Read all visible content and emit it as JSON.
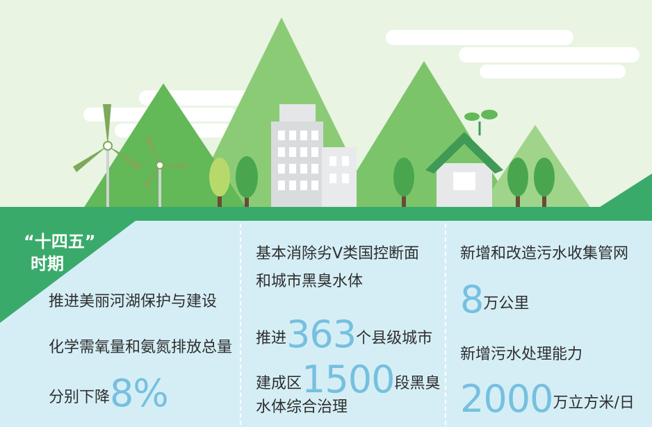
{
  "label": {
    "line1": "“十四五”",
    "line2": "时期"
  },
  "columns": [
    {
      "goal": "推进美丽河湖保护与建设",
      "detail": "化学需氧量和氨氮排放总量",
      "lead": "分别下降",
      "figure": "8%"
    },
    {
      "goal_lines": [
        "基本消除劣V类国控断面",
        "和城市黑臭水体"
      ],
      "lead1": "推进",
      "figure1": "363",
      "tail1": "个县级城市",
      "lead2": "建成区",
      "figure2": "1500",
      "tail2": "段黑臭",
      "last": "水体综合治理"
    },
    {
      "item1": "新增和改造污水收集管网",
      "figure1": "8",
      "unit1": "万公里",
      "item2": "新增污水处理能力",
      "figure2": "2000",
      "unit2": "万立方米/日"
    }
  ]
}
